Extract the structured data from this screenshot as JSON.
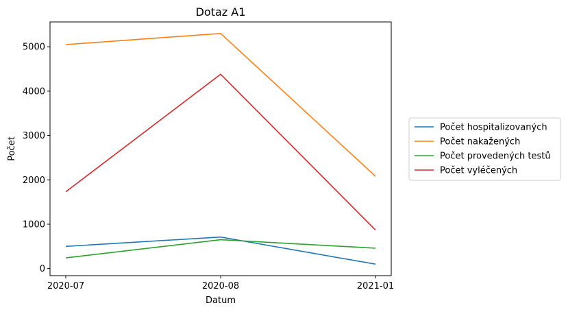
{
  "chart_data": {
    "type": "line",
    "title": "Dotaz A1",
    "xlabel": "Datum",
    "ylabel": "Počet",
    "categories": [
      "2020-07",
      "2020-08",
      "2021-01"
    ],
    "ylim": [
      -160,
      5560
    ],
    "yticks": [
      0,
      1000,
      2000,
      3000,
      4000,
      5000
    ],
    "grid": false,
    "legend_position": "right",
    "series": [
      {
        "name": "Počet hospitalizovaných",
        "color": "#1f77b4",
        "values": [
          500,
          710,
          100
        ]
      },
      {
        "name": "Počet nakažených",
        "color": "#ff7f0e",
        "values": [
          5050,
          5300,
          2080
        ]
      },
      {
        "name": "Počet provedených testů",
        "color": "#2ca02c",
        "values": [
          240,
          650,
          460
        ]
      },
      {
        "name": "Počet vyléčených",
        "color": "#d62728",
        "values": [
          1730,
          4380,
          870
        ]
      }
    ]
  }
}
